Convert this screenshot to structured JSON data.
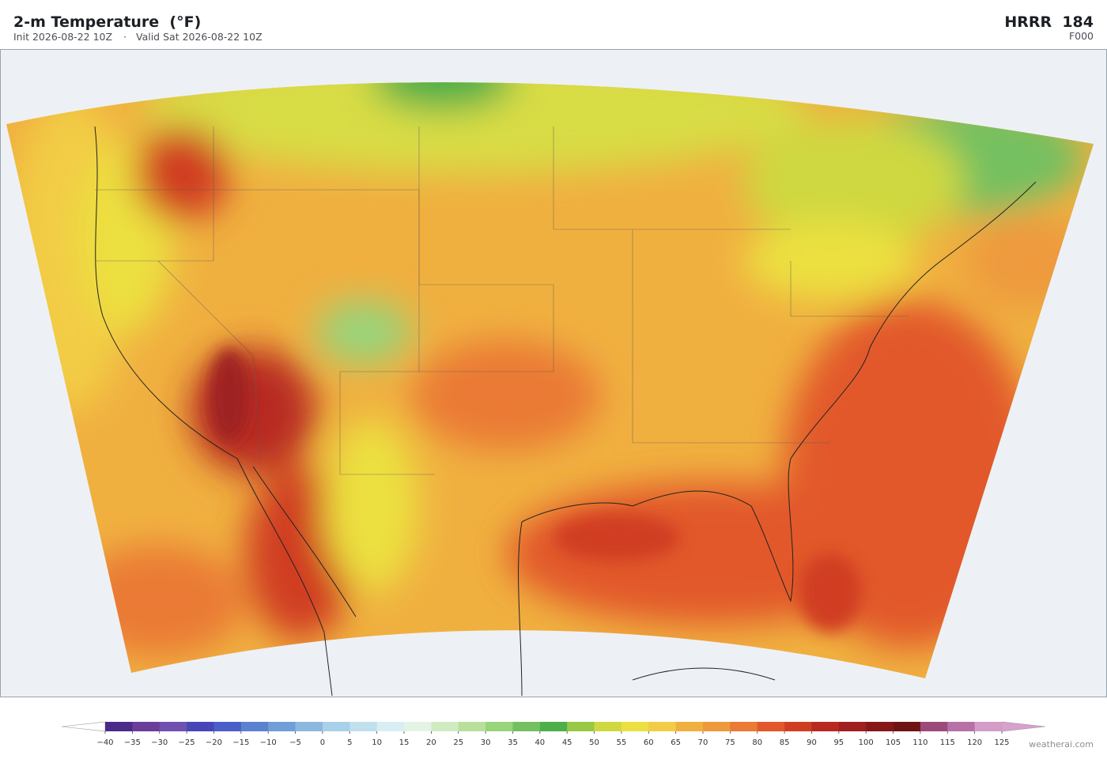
{
  "header": {
    "title": "2-m Temperature  (°F)",
    "init": "Init 2026-08-22 10Z",
    "separator": "·",
    "valid": "Valid Sat 2026-08-22 10Z",
    "model": "HRRR  184",
    "forecast_hour": "F000"
  },
  "colorbar": {
    "ticks": [
      {
        "value": -40,
        "label": "−40"
      },
      {
        "value": -35,
        "label": "−35"
      },
      {
        "value": -30,
        "label": "−30"
      },
      {
        "value": -25,
        "label": "−25"
      },
      {
        "value": -20,
        "label": "−20"
      },
      {
        "value": -15,
        "label": "−15"
      },
      {
        "value": -10,
        "label": "−10"
      },
      {
        "value": -5,
        "label": "−5"
      },
      0,
      5,
      10,
      15,
      20,
      25,
      30,
      35,
      40,
      45,
      50,
      55,
      60,
      65,
      70,
      75,
      80,
      85,
      90,
      95,
      100,
      105,
      110,
      115,
      120,
      125
    ],
    "colors": [
      "#4b2a8a",
      "#6a3d9a",
      "#7050b0",
      "#4646b8",
      "#4a5fc8",
      "#5a82d0",
      "#6f9ed8",
      "#8cb8e0",
      "#a8d0e8",
      "#c0e0ee",
      "#d8eef2",
      "#e4f4e4",
      "#d0ebc0",
      "#b8e09a",
      "#98d47a",
      "#74c060",
      "#4caf48",
      "#98c844",
      "#cfd840",
      "#ece040",
      "#f2cc44",
      "#f0b040",
      "#ee9a3c",
      "#ea7a34",
      "#e2582a",
      "#d03e22",
      "#b82a20",
      "#9e2020",
      "#861818",
      "#6e1414",
      "#9c4a7a",
      "#b870a8",
      "#d49cc8"
    ],
    "under_color": "#ffffff",
    "over_color": "#d9a0cf"
  },
  "footer": {
    "credit": "weatherai.com"
  }
}
